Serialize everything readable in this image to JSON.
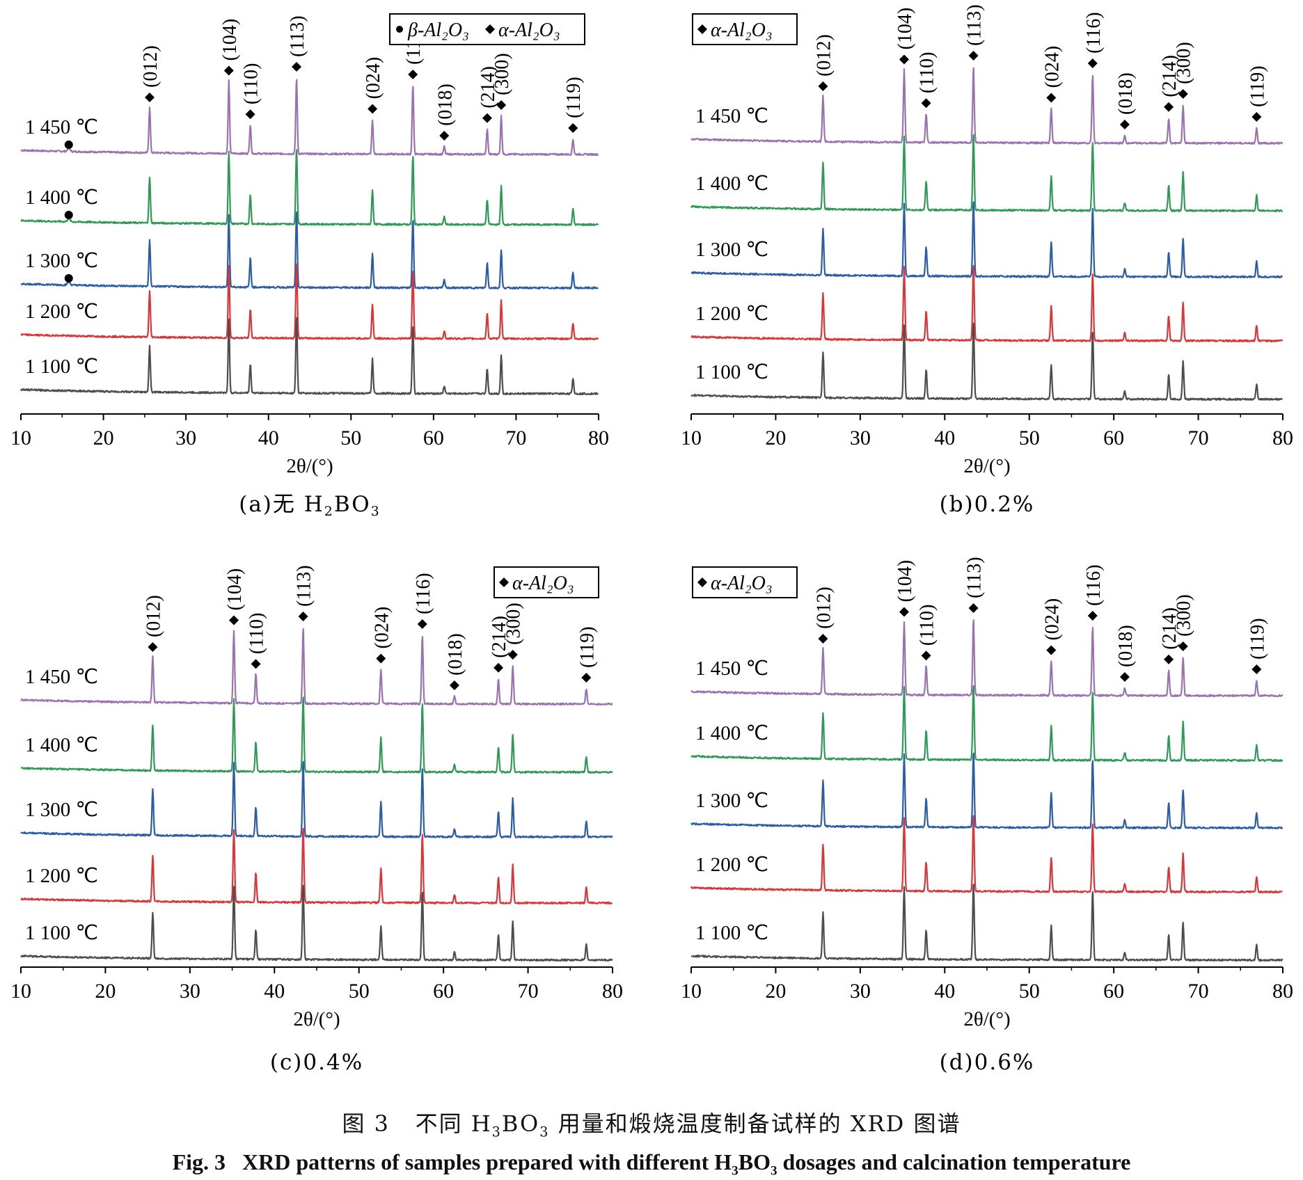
{
  "figure": {
    "caption_cn": {
      "prefix": "图 3",
      "before": "不同 H",
      "sub1": "3",
      "mid": "BO",
      "sub2": "3",
      "after": " 用量和煅烧温度制备试样的 XRD 图谱"
    },
    "caption_en": {
      "prefix": "Fig. 3",
      "before": "XRD patterns of samples prepared with different H",
      "sub1": "3",
      "mid": "BO",
      "sub2": "3",
      "after": " dosages and calcination temperature"
    }
  },
  "colors": {
    "1 450 ℃": "#9b72b0",
    "1 400 ℃": "#2e9a55",
    "1 300 ℃": "#2a5ca8",
    "1 200 ℃": "#d9363a",
    "1 100 ℃": "#4d4d4d"
  },
  "chart_data": [
    {
      "type": "line",
      "panel_label": {
        "pre": "(a)无 H",
        "sub1": "2",
        "mid": "BO",
        "sub2": "3"
      },
      "xlabel": "2θ/(°)",
      "xlim": [
        10,
        80
      ],
      "xticks": [
        10,
        20,
        30,
        40,
        50,
        60,
        70,
        80
      ],
      "legend": {
        "position": "top-right",
        "entries": [
          "β-Al₂O₃",
          "α-Al₂O₃"
        ]
      },
      "series": [
        {
          "name": "1 450 ℃",
          "beta_marker_at": 15.8
        },
        {
          "name": "1 400 ℃",
          "beta_marker_at": 15.8
        },
        {
          "name": "1 300 ℃",
          "beta_marker_at": 15.8
        },
        {
          "name": "1 200 ℃"
        },
        {
          "name": "1 100 ℃"
        }
      ]
    },
    {
      "type": "line",
      "panel_label": {
        "pre": "(b)0.2%"
      },
      "xlabel": "2θ/(°)",
      "xlim": [
        10,
        80
      ],
      "xticks": [
        10,
        20,
        30,
        40,
        50,
        60,
        70,
        80
      ],
      "legend": {
        "position": "top-left",
        "entries": [
          "α-Al₂O₃"
        ]
      },
      "series": [
        {
          "name": "1 450 ℃"
        },
        {
          "name": "1 400 ℃"
        },
        {
          "name": "1 300 ℃"
        },
        {
          "name": "1 200 ℃"
        },
        {
          "name": "1 100 ℃"
        }
      ]
    },
    {
      "type": "line",
      "panel_label": {
        "pre": "(c)0.4%"
      },
      "xlabel": "2θ/(°)",
      "xlim": [
        10,
        80
      ],
      "xticks": [
        10,
        20,
        30,
        40,
        50,
        60,
        70,
        80
      ],
      "legend": {
        "position": "top-right",
        "entries": [
          "α-Al₂O₃"
        ]
      },
      "series": [
        {
          "name": "1 450 ℃"
        },
        {
          "name": "1 400 ℃"
        },
        {
          "name": "1 300 ℃"
        },
        {
          "name": "1 200 ℃"
        },
        {
          "name": "1 100 ℃"
        }
      ]
    },
    {
      "type": "line",
      "panel_label": {
        "pre": "(d)0.6%"
      },
      "xlabel": "2θ/(°)",
      "xlim": [
        10,
        80
      ],
      "xticks": [
        10,
        20,
        30,
        40,
        50,
        60,
        70,
        80
      ],
      "legend": {
        "position": "top-left",
        "entries": [
          "α-Al₂O₃"
        ]
      },
      "series": [
        {
          "name": "1 450 ℃"
        },
        {
          "name": "1 400 ℃"
        },
        {
          "name": "1 300 ℃"
        },
        {
          "name": "1 200 ℃"
        },
        {
          "name": "1 100 ℃"
        }
      ]
    }
  ],
  "peaks": [
    {
      "hkl": "(012)",
      "two_theta": 25.6,
      "intensity": 0.6
    },
    {
      "hkl": "(104)",
      "two_theta": 35.2,
      "intensity": 0.95
    },
    {
      "hkl": "(110)",
      "two_theta": 37.8,
      "intensity": 0.38
    },
    {
      "hkl": "(113)",
      "two_theta": 43.4,
      "intensity": 1.0
    },
    {
      "hkl": "(024)",
      "two_theta": 52.6,
      "intensity": 0.45
    },
    {
      "hkl": "(116)",
      "two_theta": 57.5,
      "intensity": 0.9
    },
    {
      "hkl": "(018)",
      "two_theta": 61.3,
      "intensity": 0.1
    },
    {
      "hkl": "(214)",
      "two_theta": 66.5,
      "intensity": 0.33
    },
    {
      "hkl": "(300)",
      "two_theta": 68.2,
      "intensity": 0.5
    },
    {
      "hkl": "(119)",
      "two_theta": 76.9,
      "intensity": 0.2
    }
  ]
}
